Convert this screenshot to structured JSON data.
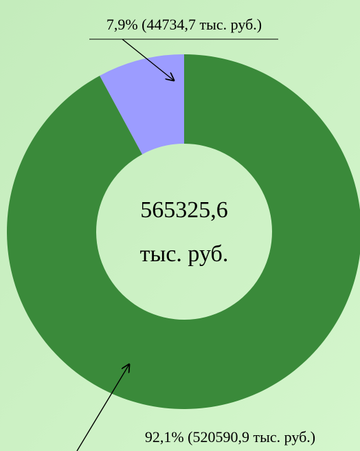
{
  "chart_data": {
    "type": "donut",
    "categories": [
      null,
      null
    ],
    "values": [
      92.1,
      7.9
    ],
    "value_labels": [
      "92,1% (520590,9  тыс. руб.)",
      "7,9% (44734,7 тыс. руб.)"
    ],
    "colors": [
      "#3a8a3a",
      "#9c9cff"
    ],
    "center_label": [
      "565325,6",
      "тыс. руб."
    ]
  }
}
